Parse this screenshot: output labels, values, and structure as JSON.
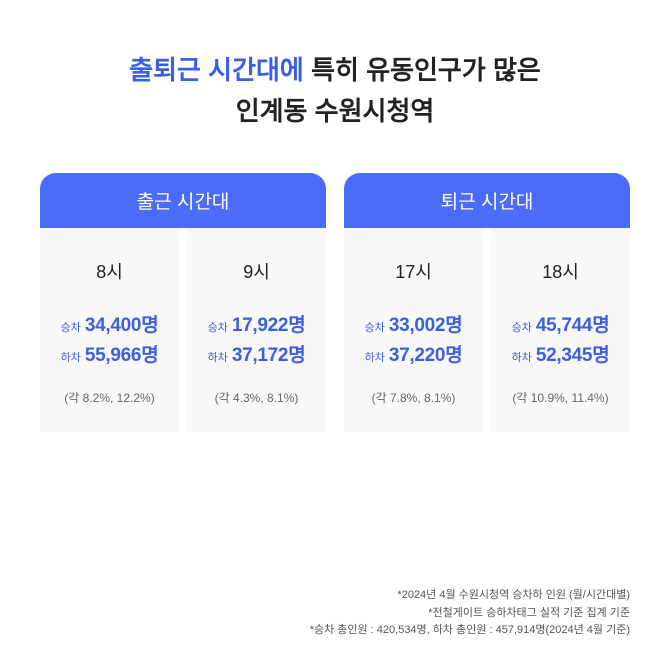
{
  "title": {
    "highlight": "출퇴근 시간대에",
    "rest1": " 특히 유동인구가 많은",
    "line2": "인계동 수원시청역"
  },
  "colors": {
    "accent": "#4a6cf7",
    "text_accent": "#3b5fe0",
    "card_bg": "#f8f8f8"
  },
  "sections": [
    {
      "header": "출근 시간대",
      "cards": [
        {
          "time": "8시",
          "board_label": "승차",
          "board_value": "34,400명",
          "alight_label": "하차",
          "alight_value": "55,966명",
          "percent": "(각 8.2%, 12.2%)"
        },
        {
          "time": "9시",
          "board_label": "승차",
          "board_value": "17,922명",
          "alight_label": "하차",
          "alight_value": "37,172명",
          "percent": "(각 4.3%, 8.1%)"
        }
      ]
    },
    {
      "header": "퇴근 시간대",
      "cards": [
        {
          "time": "17시",
          "board_label": "승차",
          "board_value": "33,002명",
          "alight_label": "하차",
          "alight_value": "37,220명",
          "percent": "(각 7.8%, 8.1%)"
        },
        {
          "time": "18시",
          "board_label": "승차",
          "board_value": "45,744명",
          "alight_label": "하차",
          "alight_value": "52,345명",
          "percent": "(각 10.9%, 11.4%)"
        }
      ]
    }
  ],
  "footnotes": {
    "line1": "*2024년 4월 수원시청역 승차하 인원 (월/시간대별)",
    "line2": "*전철게이트 승하차태그 실적 기준 집계 기준",
    "line3": "*승차 총인원 : 420,534명, 하차 총인원 : 457,914명(2024년 4월 기준)"
  }
}
